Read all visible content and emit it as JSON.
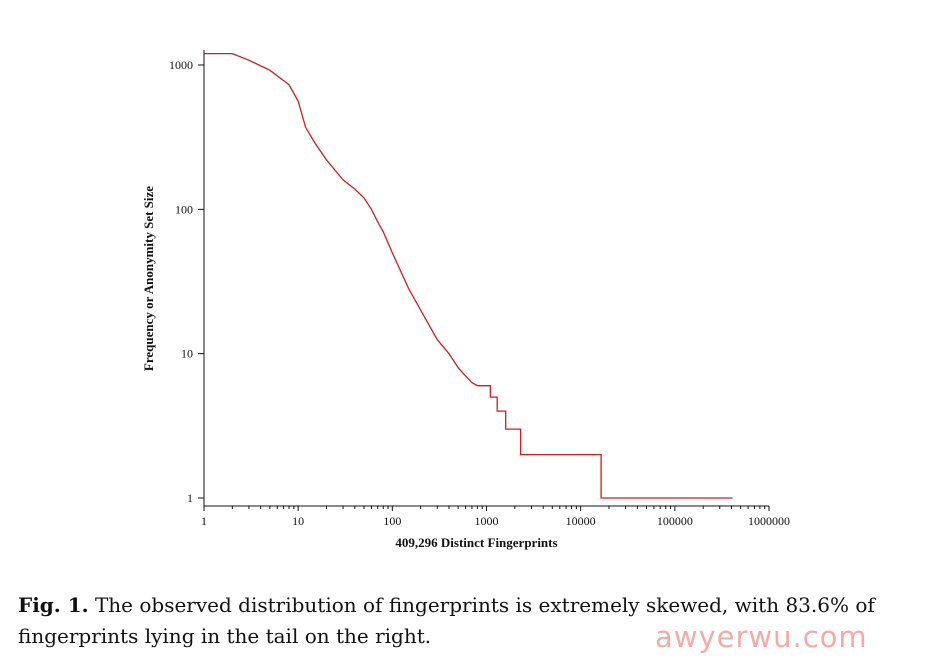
{
  "chart_data": {
    "type": "line",
    "xlabel": "409,296 Distinct Fingerprints",
    "ylabel": "Frequency or Anonymity Set Size",
    "xscale": "log",
    "yscale": "log",
    "xlim": [
      1,
      1000000
    ],
    "ylim": [
      1,
      1000
    ],
    "grid": false,
    "x_ticks": [
      1,
      10,
      100,
      1000,
      10000,
      100000,
      1000000
    ],
    "x_tick_labels": [
      "1",
      "10",
      "100",
      "1000",
      "10000",
      "100000",
      "1000000"
    ],
    "y_ticks": [
      1,
      10,
      100,
      1000
    ],
    "y_tick_labels": [
      "1",
      "10",
      "100",
      "1000"
    ],
    "color": "#cc1f1f",
    "series": [
      {
        "x": [
          1,
          2,
          3,
          5,
          7,
          8,
          10,
          12,
          15,
          20,
          30,
          40,
          50,
          60,
          70,
          80,
          100,
          150,
          200,
          300,
          400,
          500,
          600,
          700,
          800,
          900,
          1000,
          1100,
          1100,
          1300,
          1300,
          1600,
          1600,
          2300,
          2300,
          4000,
          4000,
          16500,
          16500,
          409296
        ],
        "y": [
          1200,
          1200,
          1080,
          920,
          780,
          730,
          560,
          370,
          290,
          220,
          160,
          138,
          120,
          100,
          82,
          70,
          50,
          28,
          20,
          12.5,
          10,
          8,
          7,
          6.3,
          6,
          6,
          6,
          6,
          5,
          5,
          4,
          4,
          3,
          3,
          2,
          2,
          2,
          2,
          1,
          1
        ]
      }
    ]
  },
  "caption": {
    "label": "Fig. 1.",
    "text": "The observed distribution of fingerprints is extremely skewed, with 83.6% of fingerprints lying in the tail on the right."
  },
  "watermark": "awyerwu.com"
}
